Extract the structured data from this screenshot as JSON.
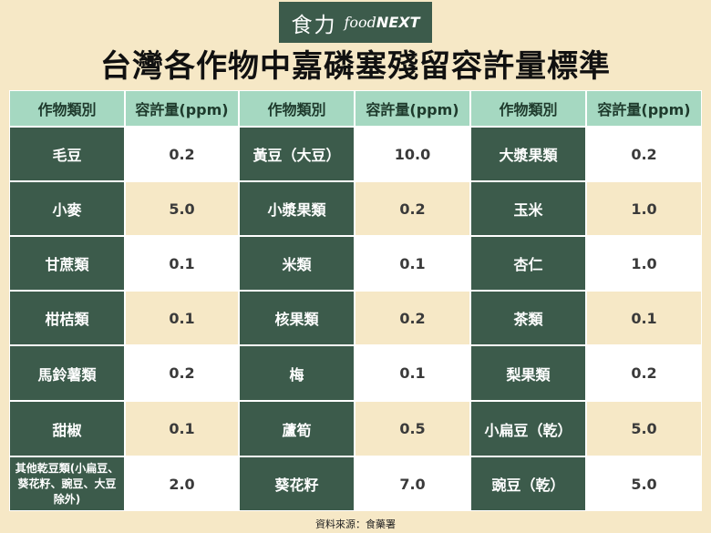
{
  "logo": {
    "cn": "食力",
    "food": "food",
    "next": "NEXT"
  },
  "title": "台灣各作物中嘉磷塞殘留容許量標準",
  "headers": [
    "作物類別",
    "容許量(ppm)",
    "作物類別",
    "容許量(ppm)",
    "作物類別",
    "容許量(ppm)"
  ],
  "rows": [
    [
      {
        "crop": "毛豆",
        "value": "0.2"
      },
      {
        "crop": "黃豆（大豆）",
        "value": "10.0"
      },
      {
        "crop": "大漿果類",
        "value": "0.2"
      }
    ],
    [
      {
        "crop": "小麥",
        "value": "5.0"
      },
      {
        "crop": "小漿果類",
        "value": "0.2"
      },
      {
        "crop": "玉米",
        "value": "1.0"
      }
    ],
    [
      {
        "crop": "甘蔗類",
        "value": "0.1"
      },
      {
        "crop": "米類",
        "value": "0.1"
      },
      {
        "crop": "杏仁",
        "value": "1.0"
      }
    ],
    [
      {
        "crop": "柑桔類",
        "value": "0.1"
      },
      {
        "crop": "核果類",
        "value": "0.2"
      },
      {
        "crop": "茶類",
        "value": "0.1"
      }
    ],
    [
      {
        "crop": "馬鈴薯類",
        "value": "0.2"
      },
      {
        "crop": "梅",
        "value": "0.1"
      },
      {
        "crop": "梨果類",
        "value": "0.2"
      }
    ],
    [
      {
        "crop": "甜椒",
        "value": "0.1"
      },
      {
        "crop": "蘆筍",
        "value": "0.5"
      },
      {
        "crop": "小扁豆（乾）",
        "value": "5.0"
      }
    ],
    [
      {
        "crop": "其他乾豆類(小扁豆、葵花籽、豌豆、大豆除外)",
        "value": "2.0"
      },
      {
        "crop": "葵花籽",
        "value": "7.0"
      },
      {
        "crop": "豌豆（乾）",
        "value": "5.0"
      }
    ]
  ],
  "source": "資料來源：食藥署",
  "colors": {
    "header_bg": "#a5d8c1",
    "crop_bg": "#3c5b4b",
    "beige": "#f6e8c6",
    "white": "#ffffff"
  }
}
